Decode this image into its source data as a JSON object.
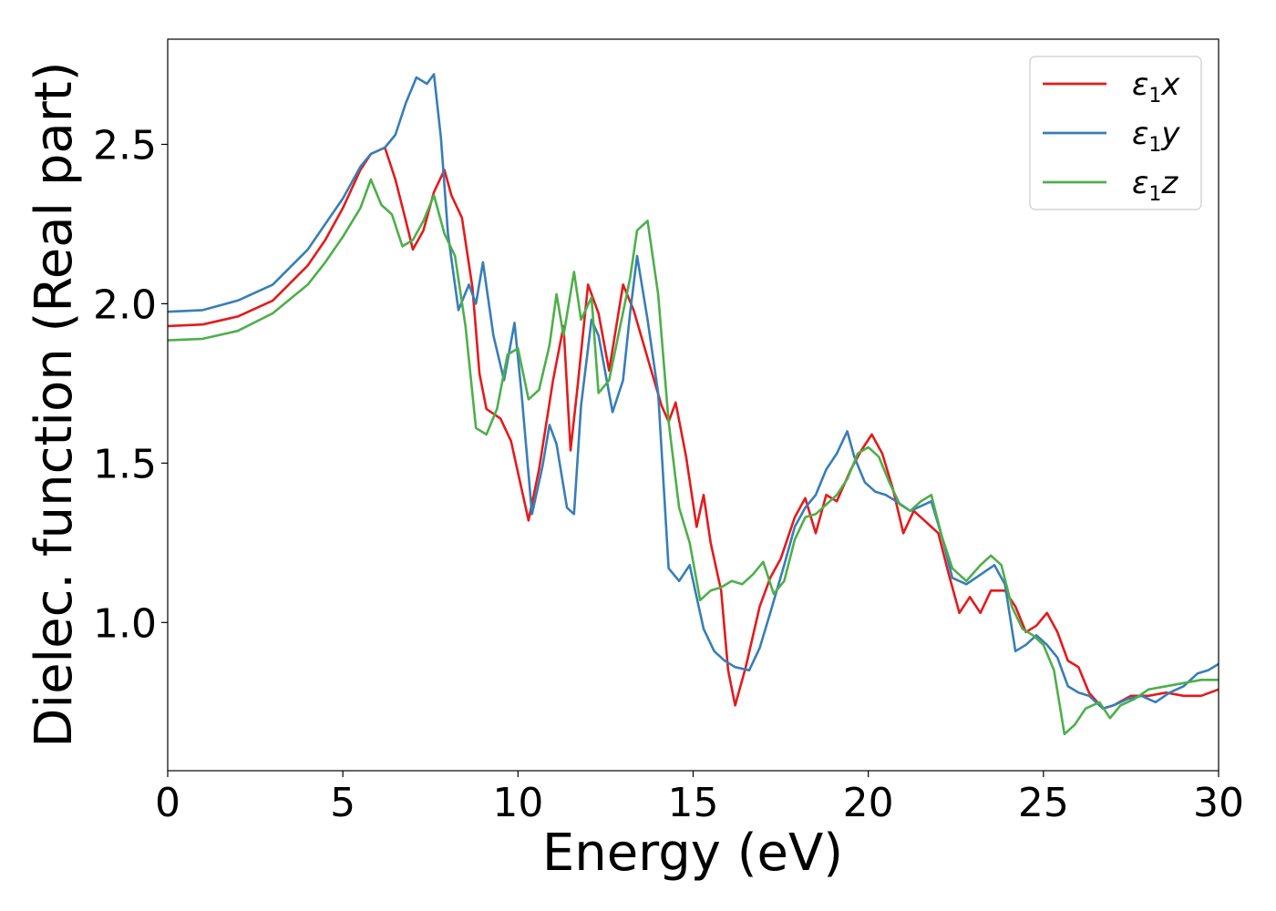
{
  "chart_data": {
    "type": "line",
    "title": "",
    "xlabel": "Energy (eV)",
    "ylabel": "Dielec. function (Real part)",
    "xlim": [
      0,
      30
    ],
    "ylim": [
      0.535,
      2.83
    ],
    "xticks": [
      0,
      5,
      10,
      15,
      20,
      25,
      30
    ],
    "yticks": [
      1.0,
      1.5,
      2.0,
      2.5
    ],
    "xtick_labels": [
      "0",
      "5",
      "10",
      "15",
      "20",
      "25",
      "30"
    ],
    "ytick_labels": [
      "1.0",
      "1.5",
      "2.0",
      "2.5"
    ],
    "grid": false,
    "legend_position": "top-right",
    "series": [
      {
        "name": "ε₁x",
        "label_base": "ε",
        "label_sub": "1",
        "label_tail": "x",
        "color": "#e41a1c",
        "points": [
          [
            0,
            1.93
          ],
          [
            1,
            1.935
          ],
          [
            2,
            1.96
          ],
          [
            3,
            2.01
          ],
          [
            4,
            2.12
          ],
          [
            4.5,
            2.2
          ],
          [
            5,
            2.3
          ],
          [
            5.5,
            2.42
          ],
          [
            5.8,
            2.47
          ],
          [
            6.2,
            2.49
          ],
          [
            6.5,
            2.39
          ],
          [
            6.8,
            2.26
          ],
          [
            7.0,
            2.17
          ],
          [
            7.3,
            2.23
          ],
          [
            7.6,
            2.35
          ],
          [
            7.9,
            2.42
          ],
          [
            8.1,
            2.34
          ],
          [
            8.4,
            2.27
          ],
          [
            8.7,
            2.05
          ],
          [
            8.9,
            1.78
          ],
          [
            9.1,
            1.67
          ],
          [
            9.5,
            1.64
          ],
          [
            9.8,
            1.57
          ],
          [
            10.1,
            1.42
          ],
          [
            10.3,
            1.32
          ],
          [
            10.6,
            1.48
          ],
          [
            11.0,
            1.76
          ],
          [
            11.3,
            1.93
          ],
          [
            11.5,
            1.54
          ],
          [
            11.7,
            1.74
          ],
          [
            12.0,
            2.06
          ],
          [
            12.3,
            1.97
          ],
          [
            12.6,
            1.79
          ],
          [
            13.0,
            2.06
          ],
          [
            13.3,
            1.98
          ],
          [
            13.7,
            1.83
          ],
          [
            14.1,
            1.68
          ],
          [
            14.3,
            1.63
          ],
          [
            14.5,
            1.69
          ],
          [
            14.8,
            1.52
          ],
          [
            15.1,
            1.3
          ],
          [
            15.3,
            1.4
          ],
          [
            15.5,
            1.25
          ],
          [
            15.8,
            1.1
          ],
          [
            16.0,
            0.85
          ],
          [
            16.2,
            0.74
          ],
          [
            16.5,
            0.86
          ],
          [
            16.9,
            1.05
          ],
          [
            17.2,
            1.14
          ],
          [
            17.5,
            1.2
          ],
          [
            17.9,
            1.33
          ],
          [
            18.2,
            1.39
          ],
          [
            18.5,
            1.28
          ],
          [
            18.8,
            1.4
          ],
          [
            19.1,
            1.38
          ],
          [
            19.5,
            1.48
          ],
          [
            19.8,
            1.54
          ],
          [
            20.1,
            1.59
          ],
          [
            20.4,
            1.53
          ],
          [
            20.7,
            1.42
          ],
          [
            21.0,
            1.28
          ],
          [
            21.3,
            1.35
          ],
          [
            21.6,
            1.32
          ],
          [
            22.0,
            1.28
          ],
          [
            22.3,
            1.15
          ],
          [
            22.6,
            1.03
          ],
          [
            22.9,
            1.08
          ],
          [
            23.2,
            1.03
          ],
          [
            23.5,
            1.1
          ],
          [
            23.9,
            1.1
          ],
          [
            24.2,
            1.05
          ],
          [
            24.5,
            0.97
          ],
          [
            24.8,
            0.99
          ],
          [
            25.1,
            1.03
          ],
          [
            25.4,
            0.97
          ],
          [
            25.7,
            0.88
          ],
          [
            26.0,
            0.86
          ],
          [
            26.3,
            0.78
          ],
          [
            26.7,
            0.73
          ],
          [
            27.0,
            0.74
          ],
          [
            27.5,
            0.77
          ],
          [
            28.0,
            0.77
          ],
          [
            28.5,
            0.78
          ],
          [
            29.0,
            0.77
          ],
          [
            29.5,
            0.77
          ],
          [
            30.0,
            0.79
          ]
        ]
      },
      {
        "name": "ε₁y",
        "label_base": "ε",
        "label_sub": "1",
        "label_tail": "y",
        "color": "#377eb8",
        "points": [
          [
            0,
            1.975
          ],
          [
            1,
            1.98
          ],
          [
            2,
            2.01
          ],
          [
            3,
            2.06
          ],
          [
            4,
            2.17
          ],
          [
            4.5,
            2.25
          ],
          [
            5,
            2.33
          ],
          [
            5.5,
            2.43
          ],
          [
            5.8,
            2.47
          ],
          [
            6.2,
            2.49
          ],
          [
            6.5,
            2.53
          ],
          [
            6.8,
            2.63
          ],
          [
            7.1,
            2.71
          ],
          [
            7.4,
            2.69
          ],
          [
            7.6,
            2.72
          ],
          [
            7.8,
            2.52
          ],
          [
            8.0,
            2.22
          ],
          [
            8.3,
            1.98
          ],
          [
            8.6,
            2.06
          ],
          [
            8.8,
            2.0
          ],
          [
            9.0,
            2.13
          ],
          [
            9.3,
            1.9
          ],
          [
            9.6,
            1.76
          ],
          [
            9.9,
            1.94
          ],
          [
            10.1,
            1.72
          ],
          [
            10.4,
            1.34
          ],
          [
            10.7,
            1.49
          ],
          [
            10.9,
            1.62
          ],
          [
            11.1,
            1.56
          ],
          [
            11.4,
            1.36
          ],
          [
            11.6,
            1.34
          ],
          [
            11.8,
            1.68
          ],
          [
            12.1,
            1.95
          ],
          [
            12.3,
            1.9
          ],
          [
            12.7,
            1.66
          ],
          [
            13.0,
            1.76
          ],
          [
            13.2,
            1.97
          ],
          [
            13.4,
            2.15
          ],
          [
            13.7,
            1.95
          ],
          [
            14.0,
            1.72
          ],
          [
            14.3,
            1.17
          ],
          [
            14.6,
            1.13
          ],
          [
            14.9,
            1.18
          ],
          [
            15.1,
            1.08
          ],
          [
            15.3,
            0.98
          ],
          [
            15.6,
            0.91
          ],
          [
            15.9,
            0.88
          ],
          [
            16.2,
            0.86
          ],
          [
            16.6,
            0.85
          ],
          [
            16.9,
            0.92
          ],
          [
            17.2,
            1.03
          ],
          [
            17.6,
            1.18
          ],
          [
            17.9,
            1.3
          ],
          [
            18.2,
            1.36
          ],
          [
            18.5,
            1.4
          ],
          [
            18.8,
            1.48
          ],
          [
            19.1,
            1.53
          ],
          [
            19.4,
            1.6
          ],
          [
            19.6,
            1.52
          ],
          [
            19.9,
            1.44
          ],
          [
            20.2,
            1.41
          ],
          [
            20.5,
            1.4
          ],
          [
            20.8,
            1.38
          ],
          [
            21.2,
            1.35
          ],
          [
            21.6,
            1.37
          ],
          [
            21.8,
            1.38
          ],
          [
            22.1,
            1.27
          ],
          [
            22.4,
            1.14
          ],
          [
            22.8,
            1.12
          ],
          [
            23.2,
            1.15
          ],
          [
            23.6,
            1.18
          ],
          [
            23.9,
            1.12
          ],
          [
            24.2,
            0.91
          ],
          [
            24.5,
            0.93
          ],
          [
            24.8,
            0.96
          ],
          [
            25.1,
            0.93
          ],
          [
            25.4,
            0.89
          ],
          [
            25.7,
            0.8
          ],
          [
            26.0,
            0.78
          ],
          [
            26.3,
            0.77
          ],
          [
            26.7,
            0.73
          ],
          [
            27.0,
            0.74
          ],
          [
            27.4,
            0.76
          ],
          [
            27.8,
            0.77
          ],
          [
            28.2,
            0.75
          ],
          [
            28.6,
            0.78
          ],
          [
            29.0,
            0.8
          ],
          [
            29.4,
            0.84
          ],
          [
            29.7,
            0.85
          ],
          [
            30.0,
            0.87
          ]
        ]
      },
      {
        "name": "ε₁z",
        "label_base": "ε",
        "label_sub": "1",
        "label_tail": "z",
        "color": "#4daf4a",
        "points": [
          [
            0,
            1.885
          ],
          [
            1,
            1.89
          ],
          [
            2,
            1.915
          ],
          [
            3,
            1.97
          ],
          [
            4,
            2.06
          ],
          [
            4.5,
            2.13
          ],
          [
            5,
            2.21
          ],
          [
            5.5,
            2.3
          ],
          [
            5.8,
            2.39
          ],
          [
            6.1,
            2.31
          ],
          [
            6.4,
            2.28
          ],
          [
            6.7,
            2.18
          ],
          [
            7.0,
            2.2
          ],
          [
            7.3,
            2.26
          ],
          [
            7.6,
            2.34
          ],
          [
            7.9,
            2.22
          ],
          [
            8.2,
            2.15
          ],
          [
            8.5,
            1.93
          ],
          [
            8.8,
            1.61
          ],
          [
            9.1,
            1.59
          ],
          [
            9.4,
            1.67
          ],
          [
            9.7,
            1.84
          ],
          [
            10.0,
            1.86
          ],
          [
            10.3,
            1.7
          ],
          [
            10.6,
            1.73
          ],
          [
            10.9,
            1.87
          ],
          [
            11.1,
            2.03
          ],
          [
            11.3,
            1.9
          ],
          [
            11.6,
            2.1
          ],
          [
            11.8,
            1.95
          ],
          [
            12.1,
            2.02
          ],
          [
            12.3,
            1.72
          ],
          [
            12.6,
            1.76
          ],
          [
            12.9,
            1.92
          ],
          [
            13.2,
            2.08
          ],
          [
            13.4,
            2.23
          ],
          [
            13.7,
            2.26
          ],
          [
            14.0,
            2.03
          ],
          [
            14.3,
            1.63
          ],
          [
            14.6,
            1.36
          ],
          [
            14.9,
            1.25
          ],
          [
            15.2,
            1.07
          ],
          [
            15.5,
            1.1
          ],
          [
            15.8,
            1.11
          ],
          [
            16.1,
            1.13
          ],
          [
            16.4,
            1.12
          ],
          [
            16.7,
            1.15
          ],
          [
            17.0,
            1.19
          ],
          [
            17.3,
            1.09
          ],
          [
            17.6,
            1.13
          ],
          [
            17.9,
            1.26
          ],
          [
            18.2,
            1.33
          ],
          [
            18.5,
            1.34
          ],
          [
            18.8,
            1.37
          ],
          [
            19.1,
            1.4
          ],
          [
            19.4,
            1.45
          ],
          [
            19.7,
            1.53
          ],
          [
            20.0,
            1.55
          ],
          [
            20.3,
            1.52
          ],
          [
            20.6,
            1.44
          ],
          [
            20.9,
            1.37
          ],
          [
            21.2,
            1.35
          ],
          [
            21.5,
            1.38
          ],
          [
            21.8,
            1.4
          ],
          [
            22.1,
            1.27
          ],
          [
            22.4,
            1.17
          ],
          [
            22.8,
            1.13
          ],
          [
            23.2,
            1.18
          ],
          [
            23.5,
            1.21
          ],
          [
            23.8,
            1.18
          ],
          [
            24.1,
            1.05
          ],
          [
            24.4,
            0.98
          ],
          [
            24.7,
            0.96
          ],
          [
            25.0,
            0.93
          ],
          [
            25.3,
            0.85
          ],
          [
            25.6,
            0.65
          ],
          [
            25.9,
            0.68
          ],
          [
            26.2,
            0.73
          ],
          [
            26.6,
            0.75
          ],
          [
            26.9,
            0.7
          ],
          [
            27.2,
            0.74
          ],
          [
            27.6,
            0.76
          ],
          [
            28.0,
            0.79
          ],
          [
            28.5,
            0.8
          ],
          [
            29.0,
            0.81
          ],
          [
            29.5,
            0.82
          ],
          [
            30.0,
            0.82
          ]
        ]
      }
    ]
  }
}
